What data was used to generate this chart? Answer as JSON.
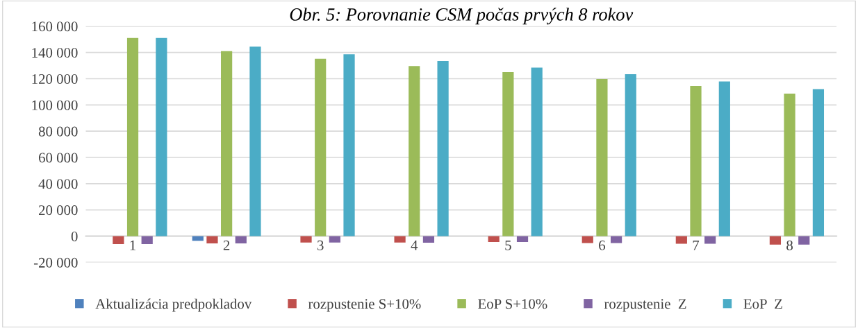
{
  "chart_data": {
    "type": "bar",
    "title": "Obr. 5: Porovnanie CSM počas prvých 8 rokov",
    "categories": [
      "1",
      "2",
      "3",
      "4",
      "5",
      "6",
      "7",
      "8"
    ],
    "series": [
      {
        "name": "Aktualizácia predpokladov",
        "color": "#4f81bd",
        "values": [
          null,
          -3500,
          null,
          null,
          null,
          null,
          null,
          null
        ]
      },
      {
        "name": "rozpustenie S+10%",
        "color": "#c0504d",
        "values": [
          -6000,
          -5500,
          -4800,
          -4800,
          -4500,
          -5200,
          -5800,
          -6400
        ]
      },
      {
        "name": "EoP S+10%",
        "color": "#9bbb59",
        "values": [
          151000,
          141000,
          135200,
          129700,
          125000,
          119800,
          114400,
          108600
        ]
      },
      {
        "name": "rozpustenie  Z",
        "color": "#8064a2",
        "values": [
          -6000,
          -5500,
          -4800,
          -5000,
          -4500,
          -5200,
          -5800,
          -6400
        ]
      },
      {
        "name": "EoP  Z",
        "color": "#4bacc6",
        "values": [
          151000,
          144500,
          138600,
          133500,
          128500,
          123500,
          117900,
          112100
        ]
      }
    ],
    "ylim": [
      -20000,
      160000
    ],
    "yticks": [
      {
        "value": -20000,
        "label": "-20 000"
      },
      0,
      {
        "value": 20000,
        "label": "20 000"
      },
      {
        "value": 40000,
        "label": "40 000"
      },
      {
        "value": 60000,
        "label": "60 000"
      },
      {
        "value": 80000,
        "label": "80 000"
      },
      {
        "value": 100000,
        "label": "100 000"
      },
      {
        "value": 120000,
        "label": "120 000"
      },
      {
        "value": 140000,
        "label": "140 000"
      },
      {
        "value": 160000,
        "label": "160 000"
      }
    ],
    "grid": "y",
    "legend": "bottom"
  }
}
